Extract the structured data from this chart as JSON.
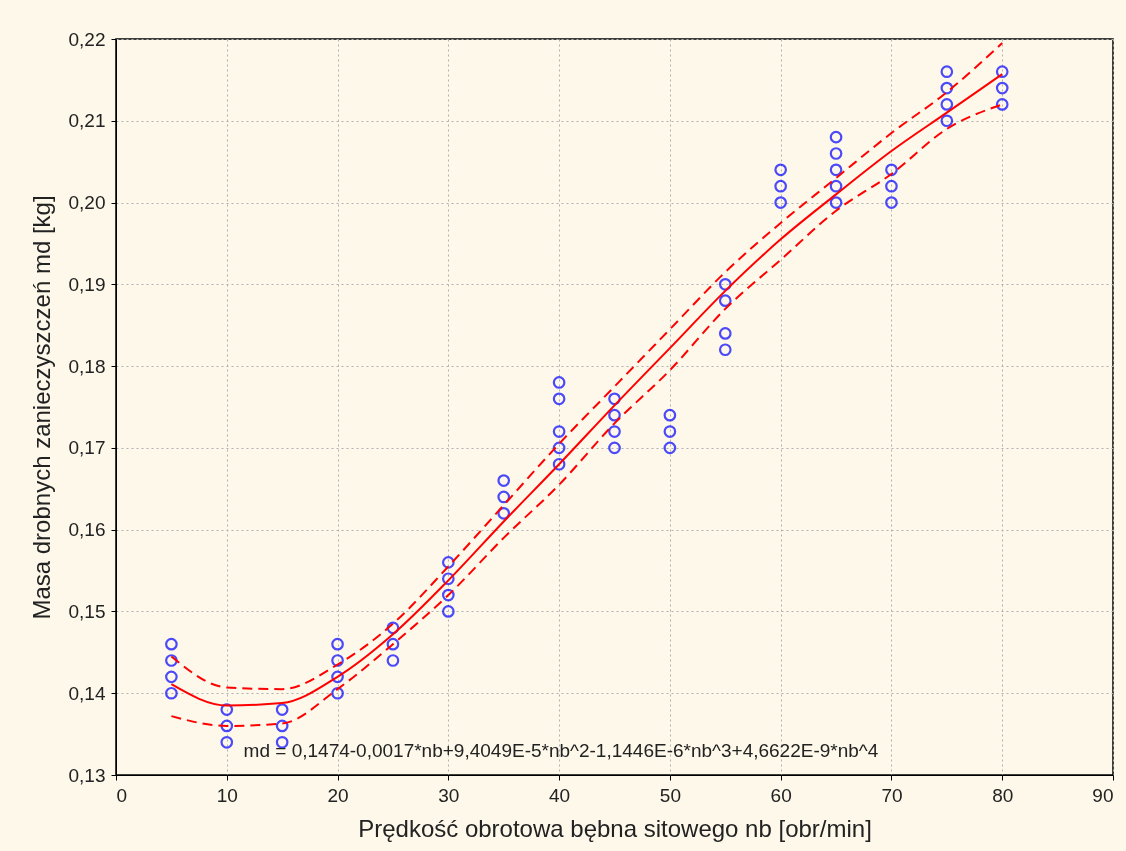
{
  "chart_data": {
    "type": "scatter",
    "xlabel": "Prędkość obrotowa bębna sitowego nb [obr/min]",
    "ylabel": "Masa drobnych zanieczyszczeń md [kg]",
    "xlim": [
      0,
      90
    ],
    "ylim": [
      0.13,
      0.22
    ],
    "xticks": [
      0,
      10,
      20,
      30,
      40,
      50,
      60,
      70,
      80,
      90
    ],
    "yticks": [
      {
        "value": 0.13,
        "label": "0,13"
      },
      {
        "value": 0.14,
        "label": "0,14"
      },
      {
        "value": 0.15,
        "label": "0,15"
      },
      {
        "value": 0.16,
        "label": "0,16"
      },
      {
        "value": 0.17,
        "label": "0,17"
      },
      {
        "value": 0.18,
        "label": "0,18"
      },
      {
        "value": 0.19,
        "label": "0,19"
      },
      {
        "value": 0.2,
        "label": "0,20"
      },
      {
        "value": 0.21,
        "label": "0,21"
      },
      {
        "value": 0.22,
        "label": "0,22"
      }
    ],
    "grid": true,
    "annotations": [
      "md = 0,1474-0,0017*nb+9,4049E-5*nb^2-1,1446E-6*nb^3+4,6622E-9*nb^4"
    ],
    "series": [
      {
        "color": "#0000ff",
        "marker": "circle",
        "x": [
          5,
          5,
          5,
          5,
          10,
          10,
          10,
          15,
          15,
          15,
          20,
          20,
          20,
          20,
          25,
          25,
          25,
          30,
          30,
          30,
          30,
          35,
          35,
          35,
          40,
          40,
          40,
          40,
          40,
          45,
          45,
          45,
          45,
          50,
          50,
          50,
          55,
          55,
          55,
          55,
          60,
          60,
          60,
          65,
          65,
          65,
          65,
          65,
          70,
          70,
          70,
          75,
          75,
          75,
          75,
          80,
          80,
          80
        ],
        "values": [
          0.146,
          0.144,
          0.142,
          0.14,
          0.138,
          0.136,
          0.134,
          0.138,
          0.136,
          0.134,
          0.146,
          0.144,
          0.142,
          0.14,
          0.148,
          0.146,
          0.144,
          0.156,
          0.154,
          0.152,
          0.15,
          0.166,
          0.164,
          0.162,
          0.178,
          0.176,
          0.172,
          0.17,
          0.168,
          0.176,
          0.174,
          0.172,
          0.17,
          0.174,
          0.172,
          0.17,
          0.19,
          0.188,
          0.184,
          0.182,
          0.204,
          0.202,
          0.2,
          0.208,
          0.206,
          0.204,
          0.202,
          0.2,
          0.204,
          0.202,
          0.2,
          0.216,
          0.214,
          0.212,
          0.21,
          0.216,
          0.214,
          0.212
        ]
      },
      {
        "type": "line",
        "color": "#ff0000",
        "line_style": "solid",
        "x": [
          5,
          10,
          15,
          20,
          25,
          30,
          35,
          40,
          45,
          50,
          55,
          60,
          65,
          70,
          75,
          80
        ],
        "values": [
          0.1411,
          0.1385,
          0.1388,
          0.142,
          0.1472,
          0.1538,
          0.161,
          0.168,
          0.1752,
          0.1822,
          0.1892,
          0.1955,
          0.201,
          0.2063,
          0.211,
          0.2157
        ]
      },
      {
        "type": "line",
        "color": "#ff0000",
        "line_style": "dashed",
        "x": [
          5,
          10,
          15,
          20,
          25,
          30,
          35,
          40,
          45,
          50,
          55,
          60,
          65,
          70,
          75,
          80
        ],
        "values": [
          0.1445,
          0.1407,
          0.1405,
          0.1435,
          0.1485,
          0.1555,
          0.163,
          0.1705,
          0.1775,
          0.1845,
          0.1915,
          0.1975,
          0.203,
          0.2085,
          0.2135,
          0.2195
        ]
      },
      {
        "type": "line",
        "color": "#ff0000",
        "line_style": "dashed",
        "x": [
          5,
          10,
          15,
          20,
          25,
          30,
          35,
          40,
          45,
          50,
          55,
          60,
          65,
          70,
          75,
          80
        ],
        "values": [
          0.1372,
          0.136,
          0.1363,
          0.1405,
          0.146,
          0.152,
          0.159,
          0.1655,
          0.173,
          0.1795,
          0.187,
          0.193,
          0.199,
          0.2035,
          0.209,
          0.212
        ]
      }
    ]
  }
}
